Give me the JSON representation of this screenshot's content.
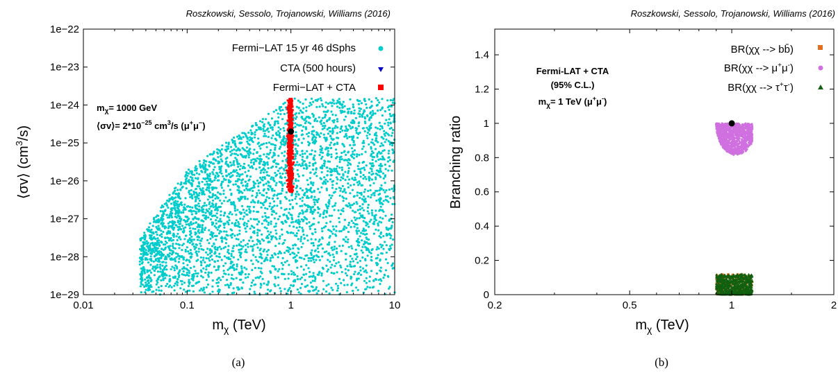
{
  "chart_data": [
    {
      "type": "scatter",
      "panel_label": "(a)",
      "credit": "Roszkowski, Sessolo, Trojanowski, Williams (2016)",
      "xlabel": "m_χ (TeV)",
      "ylabel": "⟨σv⟩ (cm³/s)",
      "xscale": "log",
      "yscale": "log",
      "xlim": [
        0.01,
        10
      ],
      "ylim": [
        1e-29,
        1e-22
      ],
      "x_ticks": [
        0.01,
        0.1,
        1,
        10
      ],
      "x_tick_labels": [
        "0.01",
        "0.1",
        "1",
        "10"
      ],
      "y_ticks": [
        1e-29,
        1e-28,
        1e-27,
        1e-26,
        1e-25,
        1e-24,
        1e-23,
        1e-22
      ],
      "y_tick_labels": [
        "1e−29",
        "1e−28",
        "1e−27",
        "1e−26",
        "1e−25",
        "1e−24",
        "1e−23",
        "1e−22"
      ],
      "legend_position": "top-right",
      "series": [
        {
          "name": "Fermi−LAT 15 yr 46 dSphs",
          "color": "#00cccc",
          "marker": "circle",
          "region": {
            "x_min": 0.035,
            "x_max": 10,
            "y_min": 1e-29,
            "y_max_at_x_min": 3e-28,
            "y_max_at_0p1": 2e-26,
            "y_max_at_1": 1.5e-24,
            "y_max_at_10": 1.5e-24
          }
        },
        {
          "name": "CTA (500 hours)",
          "color": "#0000cc",
          "marker": "triangle-down"
        },
        {
          "name": "Fermi−LAT + CTA",
          "color": "#ff0000",
          "marker": "square",
          "region": {
            "x_min": 0.88,
            "x_max": 1.1,
            "y_min": 5e-27,
            "y_max": 1.5e-24
          }
        }
      ],
      "benchmark_point": {
        "x": 1.0,
        "y": 2e-25
      },
      "annotation_lines": [
        "m_χ= 1000 GeV",
        "⟨σv⟩= 2*10^−25 cm³/s (μ⁺μ⁻)"
      ]
    },
    {
      "type": "scatter",
      "panel_label": "(b)",
      "credit": "Roszkowski, Sessolo, Trojanowski, Williams (2016)",
      "xlabel": "m_χ (TeV)",
      "ylabel": "Branching ratio",
      "xscale": "log",
      "yscale": "linear",
      "xlim": [
        0.2,
        2
      ],
      "ylim": [
        0,
        1.55
      ],
      "x_ticks": [
        0.2,
        0.5,
        1,
        2
      ],
      "x_tick_labels": [
        "0.2",
        "0.5",
        "1",
        "2"
      ],
      "y_ticks": [
        0,
        0.2,
        0.4,
        0.6,
        0.8,
        1,
        1.2,
        1.4
      ],
      "y_tick_labels": [
        "0",
        "0.2",
        "0.4",
        "0.6",
        "0.8",
        "1",
        "1.2",
        "1.4"
      ],
      "legend_position": "top-right",
      "series": [
        {
          "name": "BR(χχ --> bb̄)",
          "color": "#e07020",
          "marker": "square",
          "region": {
            "x_min": 0.9,
            "x_max": 1.15,
            "y_min": 0,
            "y_max": 0.12
          }
        },
        {
          "name": "BR(χχ --> μ⁺μ⁻)",
          "color": "#d070e0",
          "marker": "circle",
          "region": {
            "x_min": 0.9,
            "x_max": 1.15,
            "y_min": 0.82,
            "y_max": 1.0
          }
        },
        {
          "name": "BR(χχ --> τ⁺τ⁻)",
          "color": "#106010",
          "marker": "triangle-up",
          "region": {
            "x_min": 0.9,
            "x_max": 1.15,
            "y_min": 0,
            "y_max": 0.12
          }
        }
      ],
      "benchmark_point": {
        "x": 1.0,
        "y": 1.0
      },
      "annotation_lines": [
        "Fermi-LAT + CTA",
        "(95% C.L.)",
        "m_χ= 1 TeV  (μ⁺μ⁻)"
      ]
    }
  ]
}
